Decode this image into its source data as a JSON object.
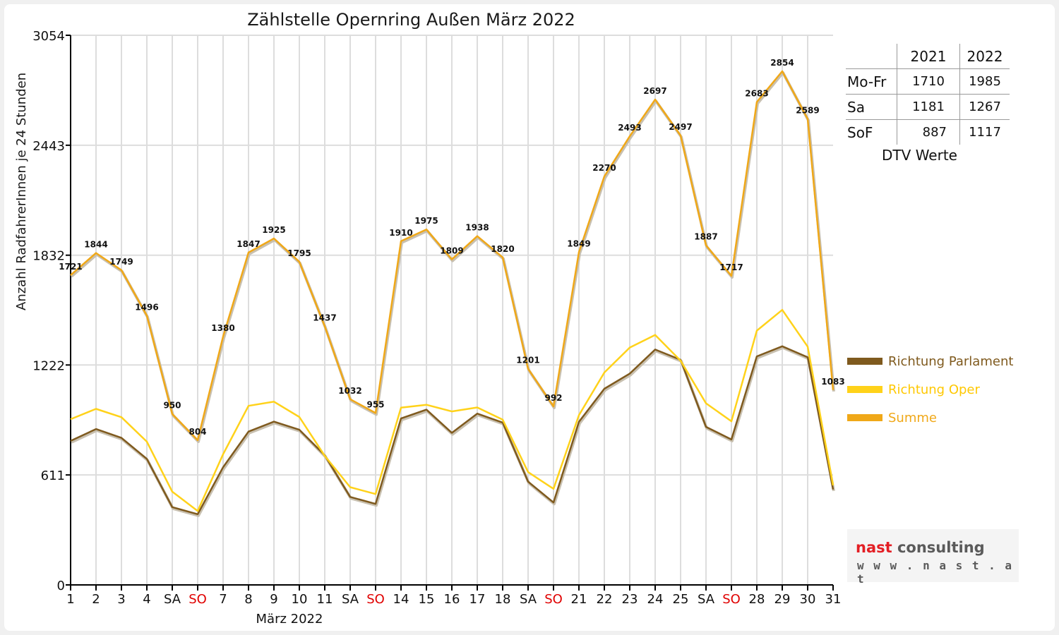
{
  "chart_data": {
    "type": "line",
    "title": "Zählstelle Opernring Außen März 2022",
    "xlabel": "März 2022",
    "ylabel": "Anzahl RadfahrerInnen je 24 Stunden",
    "ylim": [
      0,
      3054
    ],
    "yticks": [
      0,
      611,
      1222,
      1832,
      2443,
      3054
    ],
    "grid": true,
    "legend_position": "right",
    "categories": [
      "1",
      "2",
      "3",
      "4",
      "SA",
      "SO",
      "7",
      "8",
      "9",
      "10",
      "11",
      "SA",
      "SO",
      "14",
      "15",
      "16",
      "17",
      "18",
      "SA",
      "SO",
      "21",
      "22",
      "23",
      "24",
      "25",
      "SA",
      "SO",
      "28",
      "29",
      "30",
      "31"
    ],
    "series": [
      {
        "name": "Richtung Parlament",
        "color": "#7f5a1e",
        "values": [
          800,
          866,
          817,
          700,
          432,
          393,
          654,
          852,
          907,
          862,
          720,
          489,
          450,
          925,
          974,
          845,
          952,
          902,
          574,
          458,
          906,
          1090,
          1174,
          1308,
          1251,
          878,
          808,
          1270,
          1326,
          1265,
          530
        ]
      },
      {
        "name": "Richtung Oper",
        "color": "#ffd21a",
        "values": [
          921,
          978,
          932,
          796,
          518,
          411,
          726,
          995,
          1018,
          933,
          717,
          543,
          505,
          985,
          1001,
          964,
          986,
          918,
          627,
          534,
          943,
          1180,
          1319,
          1389,
          1246,
          1009,
          909,
          1413,
          1528,
          1324,
          553
        ]
      },
      {
        "name": "Summe",
        "color": "#f0a818",
        "values": [
          1721,
          1844,
          1749,
          1496,
          950,
          804,
          1380,
          1847,
          1925,
          1795,
          1437,
          1032,
          955,
          1910,
          1975,
          1809,
          1938,
          1820,
          1201,
          992,
          1849,
          2270,
          2493,
          2697,
          2497,
          1887,
          1717,
          2683,
          2854,
          2589,
          1083
        ]
      }
    ]
  },
  "dtv_table": {
    "header": [
      "",
      "2021",
      "2022"
    ],
    "rows": [
      {
        "label": "Mo-Fr",
        "v2021": "1710",
        "v2022": "1985"
      },
      {
        "label": "Sa",
        "v2021": "1181",
        "v2022": "1267"
      },
      {
        "label": "SoF",
        "v2021": "887",
        "v2022": "1117"
      }
    ],
    "caption": "DTV Werte"
  },
  "logo": {
    "word1": "nast",
    "word2": "consulting",
    "url": "www.nast.at"
  },
  "colors": {
    "sunday": "#e00000",
    "grid": "#dddddd",
    "axis": "#000000"
  }
}
